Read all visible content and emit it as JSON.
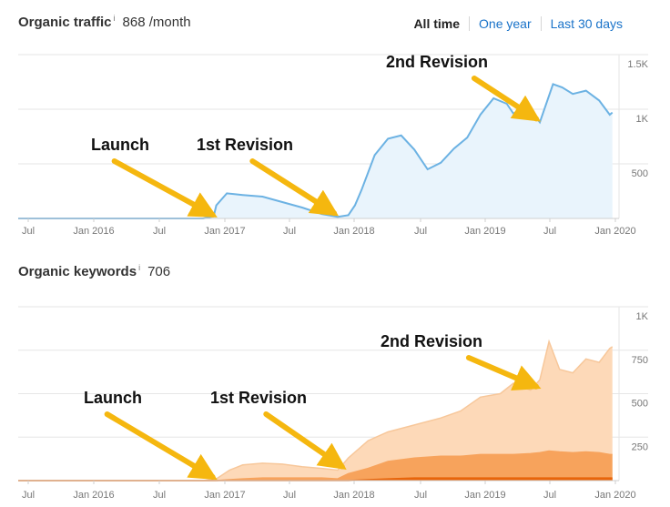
{
  "time_tabs": [
    "All time",
    "One year",
    "Last 30 days"
  ],
  "chart_data": [
    {
      "type": "area",
      "title": "Organic traffic",
      "info_icon": "i",
      "value_label": "868 /month",
      "x_ticks": [
        "Jul",
        "Jan 2016",
        "Jul",
        "Jan 2017",
        "Jul",
        "Jan 2018",
        "Jul",
        "Jan 2019",
        "Jul",
        "Jan 2020"
      ],
      "y_ticks": [
        "500",
        "1K",
        "1.5K"
      ],
      "ylim": [
        0,
        1500
      ],
      "xlim": [
        2015.5,
        2020.05
      ],
      "series_color": "#6cb2e3",
      "fill_color": "#e9f4fc",
      "x": [
        2015.5,
        2016.9,
        2016.98,
        2017.0,
        2017.08,
        2017.2,
        2017.35,
        2017.5,
        2017.65,
        2017.8,
        2017.92,
        2018.0,
        2018.05,
        2018.1,
        2018.2,
        2018.3,
        2018.4,
        2018.5,
        2018.6,
        2018.7,
        2018.8,
        2018.9,
        2019.0,
        2019.1,
        2019.2,
        2019.25,
        2019.35,
        2019.45,
        2019.55,
        2019.62,
        2019.7,
        2019.8,
        2019.9,
        2019.98,
        2020.0
      ],
      "values": [
        0,
        0,
        20,
        120,
        230,
        215,
        200,
        150,
        100,
        40,
        15,
        30,
        120,
        260,
        580,
        730,
        760,
        630,
        450,
        510,
        640,
        740,
        950,
        1100,
        1050,
        960,
        1030,
        880,
        1230,
        1200,
        1140,
        1170,
        1080,
        950,
        970
      ],
      "annotations": [
        {
          "label": "Launch",
          "target_x": 2017.0,
          "target_y": 0
        },
        {
          "label": "1st Revision",
          "target_x": 2017.92,
          "target_y": 15
        },
        {
          "label": "2nd Revision",
          "target_x": 2019.45,
          "target_y": 880
        }
      ]
    },
    {
      "type": "area",
      "title": "Organic keywords",
      "info_icon": "i",
      "value_label": "706",
      "x_ticks": [
        "Jul",
        "Jan 2016",
        "Jul",
        "Jan 2017",
        "Jul",
        "Jan 2018",
        "Jul",
        "Jan 2019",
        "Jul",
        "Jan 2020"
      ],
      "y_ticks": [
        "250",
        "500",
        "750",
        "1K"
      ],
      "ylim": [
        0,
        1000
      ],
      "xlim": [
        2015.5,
        2020.05
      ],
      "x": [
        2015.5,
        2016.9,
        2017.0,
        2017.1,
        2017.2,
        2017.35,
        2017.5,
        2017.65,
        2017.8,
        2017.92,
        2018.0,
        2018.15,
        2018.3,
        2018.5,
        2018.7,
        2018.85,
        2019.0,
        2019.15,
        2019.25,
        2019.38,
        2019.45,
        2019.52,
        2019.6,
        2019.7,
        2019.8,
        2019.9,
        2019.98,
        2020.0
      ],
      "series": [
        {
          "name": "",
          "color": "#fdd9b8",
          "values": [
            0,
            0,
            10,
            60,
            90,
            100,
            95,
            80,
            70,
            60,
            130,
            230,
            280,
            320,
            360,
            400,
            480,
            500,
            560,
            520,
            580,
            800,
            640,
            620,
            700,
            680,
            760,
            770
          ]
        },
        {
          "name": "",
          "color": "#f7a35c",
          "values": [
            0,
            0,
            0,
            5,
            10,
            15,
            15,
            15,
            15,
            10,
            40,
            70,
            110,
            130,
            140,
            140,
            150,
            150,
            150,
            155,
            160,
            170,
            165,
            160,
            165,
            160,
            150,
            150
          ]
        },
        {
          "name": "",
          "color": "#e8650b",
          "values": [
            0,
            0,
            0,
            0,
            0,
            0,
            0,
            0,
            0,
            0,
            0,
            5,
            10,
            15,
            15,
            15,
            15,
            15,
            15,
            15,
            15,
            15,
            15,
            15,
            15,
            15,
            15,
            15
          ]
        }
      ],
      "annotations": [
        {
          "label": "Launch",
          "target_x": 2017.0,
          "target_y": 0
        },
        {
          "label": "1st Revision",
          "target_x": 2017.98,
          "target_y": 60
        },
        {
          "label": "2nd Revision",
          "target_x": 2019.45,
          "target_y": 520
        }
      ]
    }
  ]
}
